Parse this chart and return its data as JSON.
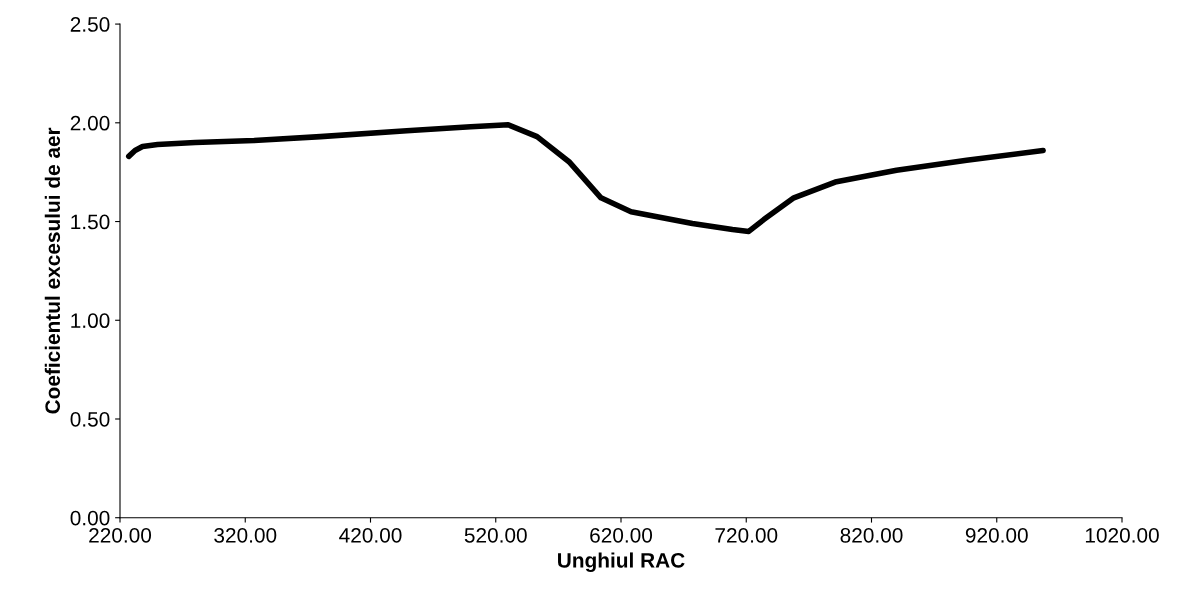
{
  "chart_data": {
    "type": "line",
    "xlabel": "Unghiul RAC",
    "ylabel": "Coeficientul excesului de aer",
    "x": [
      227,
      232,
      238,
      250,
      280,
      327,
      380,
      449,
      500,
      530,
      553,
      579,
      604,
      628,
      677,
      709,
      722,
      734,
      758,
      791,
      840,
      896,
      957
    ],
    "series": [
      {
        "color": "#000000",
        "values": [
          1.83,
          1.86,
          1.88,
          1.89,
          1.9,
          1.91,
          1.93,
          1.96,
          1.98,
          1.99,
          1.93,
          1.8,
          1.62,
          1.55,
          1.49,
          1.46,
          1.45,
          1.51,
          1.62,
          1.7,
          1.76,
          1.81,
          1.86
        ]
      }
    ],
    "xlim": [
      220,
      1020
    ],
    "xticks": [
      {
        "value": 220,
        "label": "220.00"
      },
      {
        "value": 320,
        "label": "320.00"
      },
      {
        "value": 420,
        "label": "420.00"
      },
      {
        "value": 520,
        "label": "520.00"
      },
      {
        "value": 620,
        "label": "620.00"
      },
      {
        "value": 720,
        "label": "720.00"
      },
      {
        "value": 820,
        "label": "820.00"
      },
      {
        "value": 920,
        "label": "920.00"
      },
      {
        "value": 1020,
        "label": "1020.00"
      }
    ],
    "ylim": [
      0,
      2.5
    ],
    "yticks": [
      {
        "value": 0,
        "label": "0.00"
      },
      {
        "value": 0.5,
        "label": "0.50"
      },
      {
        "value": 1,
        "label": "1.00"
      },
      {
        "value": 1.5,
        "label": "1.50"
      },
      {
        "value": 2,
        "label": "2.00"
      },
      {
        "value": 2.5,
        "label": "2.50"
      }
    ],
    "grid": false,
    "legend": false,
    "marker": "none",
    "line_style": "solid"
  }
}
